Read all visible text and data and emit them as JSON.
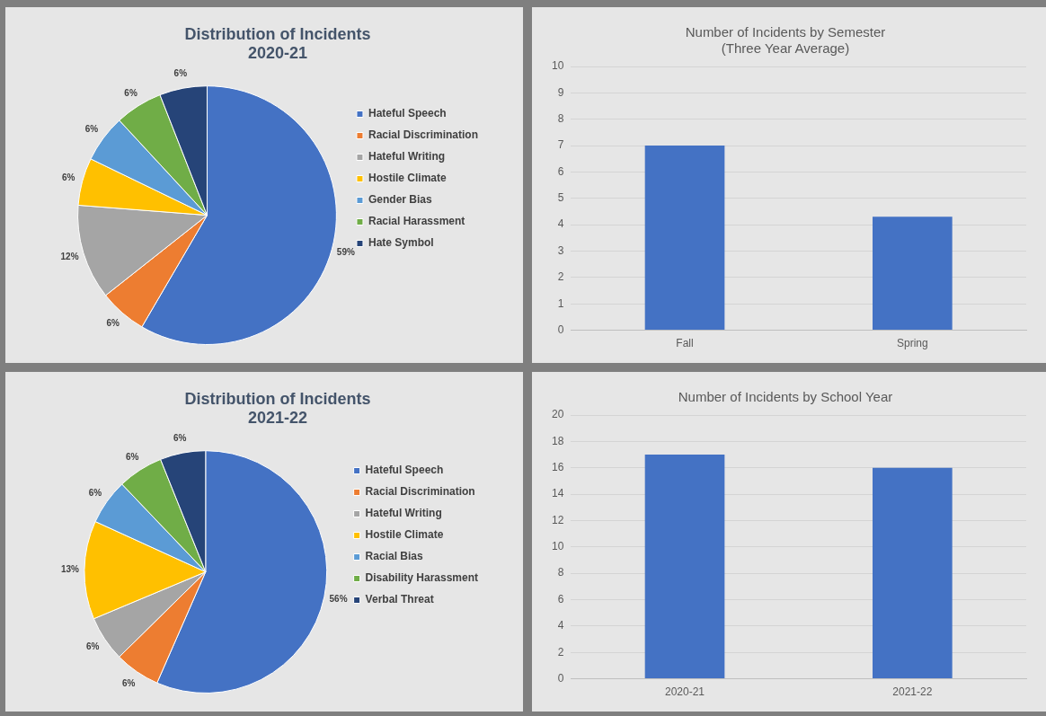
{
  "chart_data": [
    {
      "type": "pie",
      "title": "Distribution of Incidents",
      "subtitle": "2020-21",
      "categories": [
        "Hateful Speech",
        "Racial Discrimination",
        "Hateful Writing",
        "Hostile Climate",
        "Gender Bias",
        "Racial Harassment",
        "Hate Symbol"
      ],
      "values": [
        59,
        6,
        12,
        6,
        6,
        6,
        6
      ],
      "value_labels": [
        "59%",
        "6%",
        "12%",
        "6%",
        "6%",
        "6%",
        "6%"
      ],
      "colors": [
        "#4472c4",
        "#ed7d31",
        "#a5a5a5",
        "#ffc000",
        "#5b9bd5",
        "#70ad47",
        "#264478"
      ],
      "legend": "right"
    },
    {
      "type": "bar",
      "title": "Number of Incidents by Semester",
      "subtitle": "(Three Year Average)",
      "categories": [
        "Fall",
        "Spring"
      ],
      "values": [
        7,
        4.3
      ],
      "color": "#4472c4",
      "ylim": [
        0,
        10
      ],
      "yticks": [
        0,
        1,
        2,
        3,
        4,
        5,
        6,
        7,
        8,
        9,
        10
      ],
      "grid": "y"
    },
    {
      "type": "pie",
      "title": "Distribution of Incidents",
      "subtitle": "2021-22",
      "categories": [
        "Hateful Speech",
        "Racial Discrimination",
        "Hateful Writing",
        "Hostile Climate",
        "Racial Bias",
        "Disability Harassment",
        "Verbal Threat"
      ],
      "values": [
        56,
        6,
        6,
        13,
        6,
        6,
        6
      ],
      "value_labels": [
        "56%",
        "6%",
        "6%",
        "13%",
        "6%",
        "6%",
        "6%"
      ],
      "colors": [
        "#4472c4",
        "#ed7d31",
        "#a5a5a5",
        "#ffc000",
        "#5b9bd5",
        "#70ad47",
        "#264478"
      ],
      "legend": "right"
    },
    {
      "type": "bar",
      "title": "Number of Incidents by School Year",
      "categories": [
        "2020-21",
        "2021-22"
      ],
      "values": [
        17,
        16
      ],
      "color": "#4472c4",
      "ylim": [
        0,
        20
      ],
      "yticks": [
        0,
        2,
        4,
        6,
        8,
        10,
        12,
        14,
        16,
        18,
        20
      ],
      "grid": "y"
    }
  ]
}
